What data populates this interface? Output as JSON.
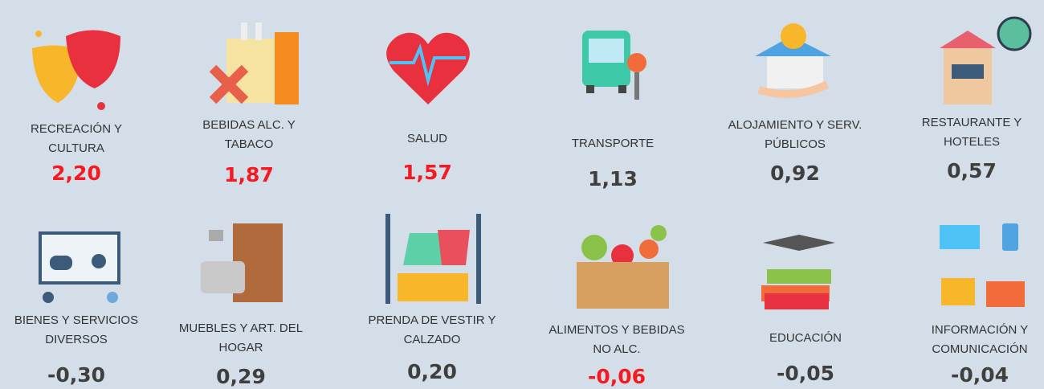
{
  "items": [
    {
      "label": [
        "RECREACIÓN Y",
        "CULTURA"
      ],
      "value": "2,20",
      "color": "#f51a1f"
    },
    {
      "label": [
        "BEBIDAS ALC. Y",
        "TABACO"
      ],
      "value": "1,87",
      "color": "#f51a1f"
    },
    {
      "label": [
        "SALUD"
      ],
      "value": "1,57",
      "color": "#f51a1f"
    },
    {
      "label": [
        "TRANSPORTE"
      ],
      "value": "1,13",
      "color": "#3f3f3f"
    },
    {
      "label": [
        "ALOJAMIENTO Y SERV.",
        "PÚBLICOS"
      ],
      "value": "0,92",
      "color": "#3f3f3f"
    },
    {
      "label": [
        "RESTAURANTE Y",
        "HOTELES"
      ],
      "value": "0,57",
      "color": "#3f3f3f"
    },
    {
      "label": [
        "BIENES Y SERVICIOS",
        "DIVERSOS"
      ],
      "value": "-0,30",
      "color": "#3f3f3f"
    },
    {
      "label": [
        "MUEBLES Y ART. DEL",
        "HOGAR"
      ],
      "value": "0,29",
      "color": "#3f3f3f"
    },
    {
      "label": [
        "PRENDA DE VESTIR Y",
        "CALZADO"
      ],
      "value": "0,20",
      "color": "#3f3f3f"
    },
    {
      "label": [
        "ALIMENTOS Y BEBIDAS",
        "NO ALC."
      ],
      "value": "-0,06",
      "color": "#f51a1f"
    },
    {
      "label": [
        "EDUCACIÓN"
      ],
      "value": "-0,05",
      "color": "#3f3f3f"
    },
    {
      "label": [
        "INFORMACIÓN Y",
        "COMUNICACIÓN"
      ],
      "value": "-0,04",
      "color": "#3f3f3f"
    }
  ]
}
